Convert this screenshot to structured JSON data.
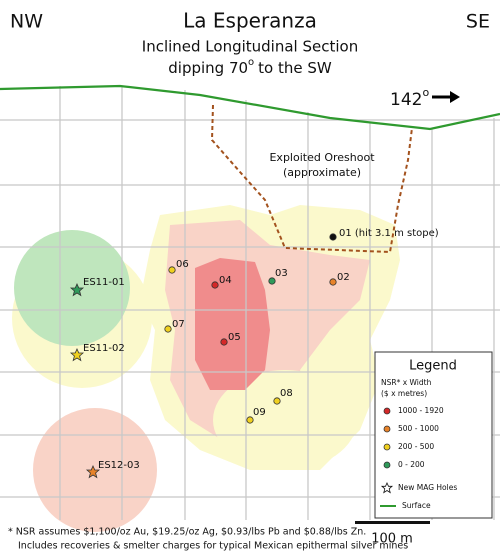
{
  "header": {
    "left": "NW",
    "title": "La Esperanza",
    "right": "SE",
    "subtitle_line1": "Inclined Longitudinal Section",
    "subtitle_line2": [
      "dipping 70",
      "o",
      "to the SW"
    ]
  },
  "bearing": [
    "142",
    "o"
  ],
  "oreshoot_label": [
    "Exploited Oreshoot",
    "(approximate)"
  ],
  "holes": [
    "01 (hit 3.1 m stope)",
    "02",
    "03",
    "04",
    "05",
    "06",
    "07",
    "08",
    "09",
    "ES11-01",
    "ES11-02",
    "ES12-03"
  ],
  "legend": {
    "title": "Legend",
    "heading": [
      "NSR* x Width",
      "($ x metres)"
    ],
    "items": [
      "1000 - 1920",
      "500 - 1000",
      "200 - 500",
      "0 - 200",
      "New MAG Holes",
      "Surface"
    ]
  },
  "scale_bar": "100 m",
  "footnote": [
    "* NSR assumes $1,100/oz Au, $19.25/oz Ag, $0.93/lbs Pb and $0.88/lbs Zn.",
    "Includes recoveries & smelter charges for typical Mexican epithermal silver mines"
  ]
}
